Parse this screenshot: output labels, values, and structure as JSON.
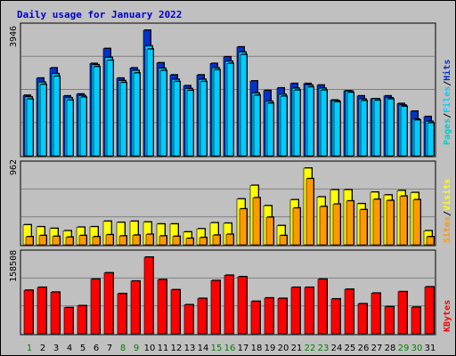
{
  "title": "Daily usage for January 2022",
  "colors": {
    "background": "#c0c0c0",
    "panel": "#c0c0c0",
    "hits": "#0033cc",
    "files": "#00ccff",
    "pages": "#00cccc",
    "visits": "#ffff00",
    "sites": "#ff9900",
    "kbytes": "#ff0000",
    "weekday_label": "#000000",
    "weekend_label": "#008000",
    "title": "#0000cc"
  },
  "legend_right_1": {
    "pages": "Pages",
    "sep1": "/",
    "files": "Files",
    "sep2": "/",
    "hits": "Hits"
  },
  "legend_right_2": {
    "sites": "Sites",
    "sep1": "/",
    "visits": "Visits"
  },
  "legend_right_3": {
    "kbytes": "KBytes"
  },
  "weekend_days": [
    1,
    8,
    9,
    15,
    16,
    22,
    23,
    29,
    30
  ],
  "chart_data": [
    {
      "type": "bar",
      "name": "hits-files-pages",
      "categories": [
        "1",
        "2",
        "3",
        "4",
        "5",
        "6",
        "7",
        "8",
        "9",
        "10",
        "11",
        "12",
        "13",
        "14",
        "15",
        "16",
        "17",
        "18",
        "19",
        "20",
        "21",
        "22",
        "23",
        "24",
        "25",
        "26",
        "27",
        "28",
        "29",
        "30",
        "31"
      ],
      "max_label": "3946",
      "ylim": [
        0,
        3946
      ],
      "series": [
        {
          "name": "Hits",
          "values": [
            1900,
            2440,
            2760,
            1880,
            1940,
            2900,
            3370,
            2440,
            2760,
            3946,
            2920,
            2540,
            2200,
            2540,
            2900,
            3110,
            3420,
            2350,
            2050,
            2130,
            2270,
            2270,
            2220,
            1750,
            2040,
            1880,
            1790,
            1880,
            1640,
            1400,
            1230
          ]
        },
        {
          "name": "Files",
          "values": [
            1850,
            2310,
            2580,
            1820,
            1890,
            2860,
            3090,
            2360,
            2680,
            3450,
            2750,
            2400,
            2110,
            2400,
            2760,
            2970,
            3260,
            1970,
            1710,
            1930,
            2120,
            2220,
            2120,
            1730,
            2030,
            1780,
            1790,
            1820,
            1590,
            1150,
            1080
          ]
        },
        {
          "name": "Pages",
          "values": [
            1780,
            2240,
            2500,
            1750,
            1840,
            2800,
            3000,
            2300,
            2600,
            3350,
            2680,
            2330,
            2050,
            2330,
            2700,
            2900,
            3180,
            1900,
            1650,
            1870,
            2060,
            2160,
            2060,
            1690,
            1990,
            1730,
            1740,
            1780,
            1550,
            1120,
            1030
          ]
        }
      ]
    },
    {
      "type": "bar",
      "name": "visits-sites",
      "categories": [
        "1",
        "2",
        "3",
        "4",
        "5",
        "6",
        "7",
        "8",
        "9",
        "10",
        "11",
        "12",
        "13",
        "14",
        "15",
        "16",
        "17",
        "18",
        "19",
        "20",
        "21",
        "22",
        "23",
        "24",
        "25",
        "26",
        "27",
        "28",
        "29",
        "30",
        "31"
      ],
      "max_label": "962",
      "ylim": [
        0,
        962
      ],
      "series": [
        {
          "name": "Visits",
          "values": [
            250,
            225,
            205,
            175,
            220,
            225,
            295,
            280,
            295,
            285,
            260,
            260,
            160,
            200,
            275,
            270,
            575,
            745,
            490,
            240,
            565,
            962,
            600,
            690,
            690,
            515,
            660,
            625,
            680,
            655,
            175
          ]
        },
        {
          "name": "Sites",
          "values": [
            100,
            115,
            105,
            95,
            115,
            100,
            125,
            110,
            120,
            130,
            110,
            105,
            80,
            90,
            120,
            130,
            450,
            590,
            345,
            115,
            460,
            830,
            480,
            510,
            550,
            440,
            570,
            555,
            610,
            565,
            100
          ]
        }
      ]
    },
    {
      "type": "bar",
      "name": "kbytes",
      "categories": [
        "1",
        "2",
        "3",
        "4",
        "5",
        "6",
        "7",
        "8",
        "9",
        "10",
        "11",
        "12",
        "13",
        "14",
        "15",
        "16",
        "17",
        "18",
        "19",
        "20",
        "21",
        "22",
        "23",
        "24",
        "25",
        "26",
        "27",
        "28",
        "29",
        "30",
        "31"
      ],
      "max_label": "158508",
      "ylim": [
        0,
        158508
      ],
      "series": [
        {
          "name": "KBytes",
          "values": [
            90000,
            96000,
            86000,
            54000,
            58000,
            113000,
            126000,
            83000,
            109000,
            158508,
            112000,
            91000,
            60000,
            73000,
            110000,
            121000,
            118000,
            67000,
            74000,
            73000,
            96000,
            96000,
            113000,
            72000,
            92000,
            62000,
            84000,
            56000,
            87000,
            55000,
            97000
          ]
        }
      ]
    }
  ]
}
